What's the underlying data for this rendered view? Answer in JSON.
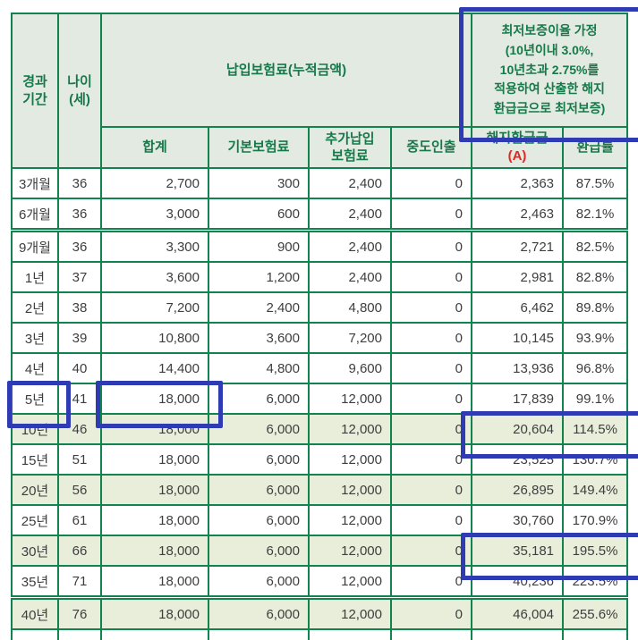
{
  "colors": {
    "border_green": "#12834f",
    "header_text_green": "#17784a",
    "header_bg": "#e2eae1",
    "shaded_row_bg": "#e9eedb",
    "highlight_blue": "#2f3bb3",
    "accent_red": "#e0261f",
    "data_text": "#3e3e3e"
  },
  "table": {
    "header": {
      "elapsed_period": "경과\n기간",
      "age": "나이\n(세)",
      "premium_group": "납입보험료(누적금액)",
      "min_guarantee_note": "최저보증이율 가정\n(10년이내 3.0%,\n10년초과 2.75%를\n적용하여 산출한 해지\n환급금으로 최저보증)",
      "total": "합계",
      "basic_premium": "기본보험료",
      "additional_premium": "추가납입\n보험료",
      "mid_withdrawal": "중도인출",
      "surrender_value": "해지환급금",
      "surrender_value_sub": "(A)",
      "refund_rate": "환급률"
    },
    "rows": [
      {
        "period": "3개월",
        "age": "36",
        "total": "2,700",
        "basic": "300",
        "additional": "2,400",
        "withdrawal": "0",
        "surrender": "2,363",
        "rate": "87.5%",
        "shaded": false,
        "thick_top": false
      },
      {
        "period": "6개월",
        "age": "36",
        "total": "3,000",
        "basic": "600",
        "additional": "2,400",
        "withdrawal": "0",
        "surrender": "2,463",
        "rate": "82.1%",
        "shaded": false,
        "thick_top": false
      },
      {
        "period": "9개월",
        "age": "36",
        "total": "3,300",
        "basic": "900",
        "additional": "2,400",
        "withdrawal": "0",
        "surrender": "2,721",
        "rate": "82.5%",
        "shaded": false,
        "thick_top": true
      },
      {
        "period": "1년",
        "age": "37",
        "total": "3,600",
        "basic": "1,200",
        "additional": "2,400",
        "withdrawal": "0",
        "surrender": "2,981",
        "rate": "82.8%",
        "shaded": false,
        "thick_top": false
      },
      {
        "period": "2년",
        "age": "38",
        "total": "7,200",
        "basic": "2,400",
        "additional": "4,800",
        "withdrawal": "0",
        "surrender": "6,462",
        "rate": "89.8%",
        "shaded": false,
        "thick_top": false
      },
      {
        "period": "3년",
        "age": "39",
        "total": "10,800",
        "basic": "3,600",
        "additional": "7,200",
        "withdrawal": "0",
        "surrender": "10,145",
        "rate": "93.9%",
        "shaded": false,
        "thick_top": false
      },
      {
        "period": "4년",
        "age": "40",
        "total": "14,400",
        "basic": "4,800",
        "additional": "9,600",
        "withdrawal": "0",
        "surrender": "13,936",
        "rate": "96.8%",
        "shaded": false,
        "thick_top": false
      },
      {
        "period": "5년",
        "age": "41",
        "total": "18,000",
        "basic": "6,000",
        "additional": "12,000",
        "withdrawal": "0",
        "surrender": "17,839",
        "rate": "99.1%",
        "shaded": false,
        "thick_top": false
      },
      {
        "period": "10년",
        "age": "46",
        "total": "18,000",
        "basic": "6,000",
        "additional": "12,000",
        "withdrawal": "0",
        "surrender": "20,604",
        "rate": "114.5%",
        "shaded": true,
        "thick_top": false
      },
      {
        "period": "15년",
        "age": "51",
        "total": "18,000",
        "basic": "6,000",
        "additional": "12,000",
        "withdrawal": "0",
        "surrender": "23,525",
        "rate": "130.7%",
        "shaded": false,
        "thick_top": false
      },
      {
        "period": "20년",
        "age": "56",
        "total": "18,000",
        "basic": "6,000",
        "additional": "12,000",
        "withdrawal": "0",
        "surrender": "26,895",
        "rate": "149.4%",
        "shaded": true,
        "thick_top": false
      },
      {
        "period": "25년",
        "age": "61",
        "total": "18,000",
        "basic": "6,000",
        "additional": "12,000",
        "withdrawal": "0",
        "surrender": "30,760",
        "rate": "170.9%",
        "shaded": false,
        "thick_top": false
      },
      {
        "period": "30년",
        "age": "66",
        "total": "18,000",
        "basic": "6,000",
        "additional": "12,000",
        "withdrawal": "0",
        "surrender": "35,181",
        "rate": "195.5%",
        "shaded": true,
        "thick_top": false
      },
      {
        "period": "35년",
        "age": "71",
        "total": "18,000",
        "basic": "6,000",
        "additional": "12,000",
        "withdrawal": "0",
        "surrender": "40,236",
        "rate": "223.5%",
        "shaded": false,
        "thick_top": false
      },
      {
        "period": "40년",
        "age": "76",
        "total": "18,000",
        "basic": "6,000",
        "additional": "12,000",
        "withdrawal": "0",
        "surrender": "46,004",
        "rate": "255.6%",
        "shaded": true,
        "thick_top": true
      }
    ]
  },
  "highlights": [
    {
      "id": "guarantee-note",
      "marks": "최저보증이율 가정 헤더 셀"
    },
    {
      "id": "period-5y",
      "marks": "5년"
    },
    {
      "id": "total-5y",
      "marks": "18,000 (5년 납입보험료 합계)"
    },
    {
      "id": "surrender-10y",
      "marks": "20,604 / 114.5% (10년 해지환급금·환급률)"
    },
    {
      "id": "surrender-30y",
      "marks": "35,181 / 195.5% (30년 해지환급금·환급률)"
    }
  ]
}
